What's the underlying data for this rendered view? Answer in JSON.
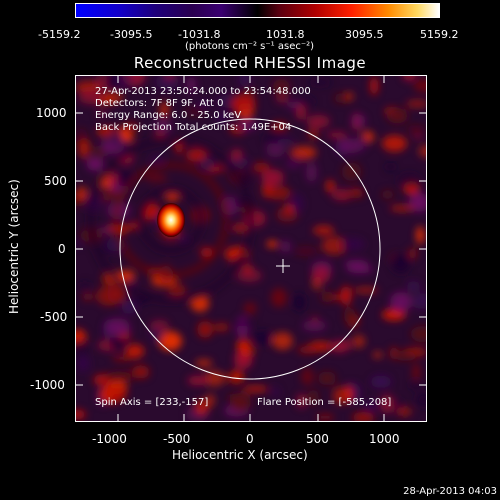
{
  "colorbar": {
    "ticks": [
      "-5159.2",
      "-3095.5",
      "-1031.8",
      "1031.8",
      "3095.5",
      "5159.2"
    ],
    "unit_label": "(photons cm⁻² s⁻¹ asec⁻²)"
  },
  "title": "Reconstructed RHESSI Image",
  "info": {
    "line1": "27-Apr-2013 23:50:24.000 to 23:54:48.000",
    "line2": "Detectors: 7F 8F 9F, Att 0",
    "line3": "Energy Range: 6.0 - 25.0 keV",
    "line4": "Back Projection     Total counts: 1.49E+04"
  },
  "footer": {
    "spin_axis": "Spin Axis = [233,-157]",
    "flare_position": "Flare Position = [-585,208]"
  },
  "axes": {
    "xlabel": "Heliocentric X (arcsec)",
    "ylabel": "Heliocentric Y (arcsec)",
    "xticks": [
      "-1000",
      "-500",
      "0",
      "500",
      "1000"
    ],
    "yticks": [
      "1000",
      "500",
      "0",
      "-500",
      "-1000"
    ]
  },
  "timestamp": "28-Apr-2013 04:03",
  "colors": {
    "background": "#000000",
    "foreground": "#ffffff"
  }
}
